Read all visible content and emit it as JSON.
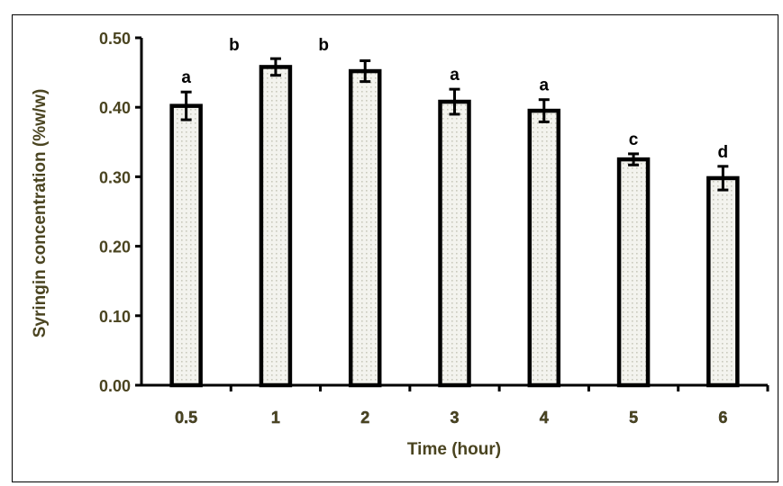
{
  "chart_data": {
    "type": "bar",
    "title": "",
    "xlabel": "Time (hour)",
    "ylabel": "Syringin concentration (%w/w)",
    "ylim": [
      0,
      0.5
    ],
    "yticks": [
      "0.00",
      "0.10",
      "0.20",
      "0.30",
      "0.40",
      "0.50"
    ],
    "categories": [
      "0.5",
      "1",
      "2",
      "3",
      "4",
      "5",
      "6"
    ],
    "values": [
      0.402,
      0.458,
      0.452,
      0.408,
      0.395,
      0.325,
      0.298
    ],
    "errors": [
      0.02,
      0.012,
      0.015,
      0.018,
      0.016,
      0.008,
      0.017
    ],
    "significance_letters": [
      "a",
      "b",
      "b",
      "a",
      "a",
      "c",
      "d"
    ],
    "grid": false,
    "legend": "none"
  },
  "colors": {
    "bar_fill": "#f3f3ee",
    "bar_pattern": "#c9c9bd",
    "bar_edge": "#000000",
    "axis": "#000000",
    "label_text": "#4a4420"
  }
}
